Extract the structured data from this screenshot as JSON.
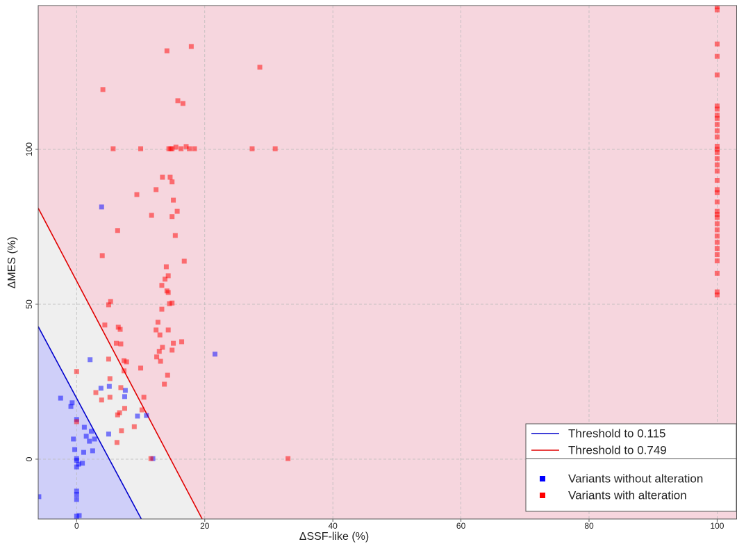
{
  "chart_data": {
    "type": "scatter",
    "x_label": "ΔSSF-like (%)",
    "y_label": "ΔMES (%)",
    "xlim": [
      -6,
      103.1
    ],
    "ylim": [
      -19.3,
      146.4
    ],
    "xticks": [
      0,
      20,
      40,
      60,
      80,
      100
    ],
    "yticks": [
      0,
      50,
      100
    ],
    "grid": true,
    "background": "#f6d6de",
    "lines": [
      {
        "name": "Threshold to 0.749",
        "color": "#e00000",
        "fill": "#efefef",
        "x": [
          -6,
          19.6
        ],
        "y": [
          81,
          -19.3
        ]
      },
      {
        "name": "Threshold to 0.115",
        "color": "#0000cc",
        "fill": "#cfcff9",
        "x": [
          -6,
          10.1
        ],
        "y": [
          42.8,
          -19.3
        ]
      }
    ],
    "series": [
      {
        "name": "Variants without alteration",
        "color": "#0000ff",
        "x": [
          -5.9,
          -2.5,
          -0.7,
          -0.9,
          2.1,
          3.9,
          21.6,
          7.6,
          7.5,
          5.1,
          3.8,
          1.2,
          2.3,
          2,
          2.8,
          1.5,
          -0.5,
          -0.3,
          1.1,
          2.5,
          5,
          0,
          0,
          0.3,
          0.9,
          0,
          0,
          0,
          0,
          0,
          0.4,
          9.5,
          10.9,
          11.9,
          0
        ],
        "y": [
          -12.1,
          19.7,
          18.2,
          17,
          32.1,
          81.4,
          33.9,
          22.2,
          20.2,
          23.5,
          22.9,
          10.3,
          9,
          5.8,
          6.5,
          7.4,
          6.5,
          3.1,
          2.2,
          2.7,
          8.1,
          0.2,
          -0.4,
          -1.6,
          -1.3,
          -2.5,
          -10.3,
          -11.4,
          -13,
          -18.4,
          -18.2,
          13.9,
          14.1,
          0.2,
          12.8
        ]
      },
      {
        "name": "Variants with alteration",
        "color": "#ff0000",
        "x": [
          100,
          100,
          100,
          100,
          100,
          100,
          100,
          100,
          100,
          100,
          100,
          100,
          100,
          100,
          100,
          100,
          100,
          100,
          100,
          100,
          100,
          100,
          100,
          100,
          100,
          100,
          100,
          100,
          100,
          100,
          100,
          100,
          100,
          100,
          100,
          14.1,
          17.9,
          28.6,
          4.1,
          15.8,
          16.6,
          5.7,
          10,
          14.4,
          14.7,
          14.9,
          15.5,
          16.3,
          17.1,
          17.6,
          18.4,
          27.4,
          31,
          13.4,
          14.6,
          14.9,
          12.4,
          9.4,
          15.1,
          15.7,
          11.7,
          14.9,
          6.4,
          15.4,
          16.8,
          4,
          14,
          14.3,
          13.8,
          13.3,
          14.1,
          14.3,
          14.9,
          14.5,
          13.3,
          5.3,
          5,
          4.4,
          12.7,
          14.3,
          12.4,
          6.5,
          6.8,
          13,
          15.1,
          16.4,
          6.2,
          6.9,
          13.4,
          12.9,
          14.9,
          7.4,
          7.8,
          5,
          12.5,
          13.1,
          14.2,
          0,
          10,
          7.4,
          5.2,
          13.7,
          6.9,
          3,
          3.9,
          5.2,
          10.5,
          7.5,
          6.7,
          6.4,
          10.2,
          9,
          7,
          6.3,
          11.6,
          33,
          0
        ],
        "y": [
          146,
          145,
          134,
          130,
          124,
          114,
          113,
          111,
          110,
          108,
          106,
          104,
          101,
          100,
          99,
          97,
          95,
          93,
          90,
          87,
          86,
          83,
          80,
          79,
          78,
          76,
          74,
          72,
          70,
          68,
          66,
          64,
          60,
          54,
          53,
          131.8,
          133.2,
          126.5,
          119.3,
          115.7,
          114.8,
          100.2,
          100.2,
          100.2,
          100.2,
          100.2,
          100.7,
          100.2,
          100.9,
          100.2,
          100.2,
          100.2,
          100.2,
          91,
          91,
          89.5,
          87,
          85.4,
          83.6,
          80,
          78.7,
          78.3,
          73.8,
          72.2,
          63.9,
          65.7,
          62.1,
          59.2,
          58.1,
          56.1,
          54.3,
          53.8,
          50.4,
          50.2,
          48.4,
          50.9,
          49.8,
          43.3,
          44.2,
          41.7,
          41.7,
          42.6,
          41.9,
          40.1,
          37.4,
          37.9,
          37.4,
          37.2,
          36.1,
          34.8,
          35.2,
          31.8,
          31.4,
          32.3,
          33,
          31.6,
          27.1,
          28.3,
          29.4,
          28.5,
          26,
          24.2,
          23.1,
          21.5,
          19.1,
          20,
          20,
          16.4,
          15,
          14.3,
          15.9,
          10.5,
          9.2,
          5.4,
          0.2,
          0.2,
          12.1
        ]
      }
    ]
  }
}
